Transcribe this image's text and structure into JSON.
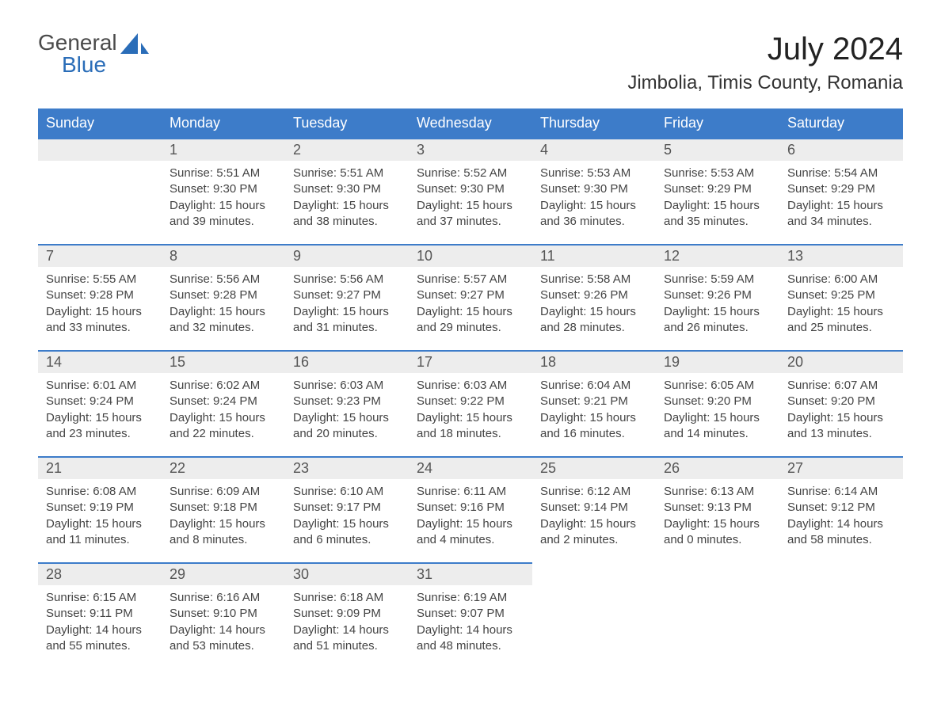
{
  "logo": {
    "line1": "General",
    "line2": "Blue"
  },
  "title": "July 2024",
  "location": "Jimbolia, Timis County, Romania",
  "colors": {
    "header_bg": "#3d7cc9",
    "header_text": "#ffffff",
    "daynum_bg": "#ededed",
    "daynum_border": "#3d7cc9",
    "body_text": "#444444",
    "title_text": "#222222",
    "logo_gray": "#4a4a4a",
    "logo_blue": "#2a6db8",
    "background": "#ffffff"
  },
  "day_headers": [
    "Sunday",
    "Monday",
    "Tuesday",
    "Wednesday",
    "Thursday",
    "Friday",
    "Saturday"
  ],
  "weeks": [
    [
      {
        "empty": true
      },
      {
        "num": "1",
        "sunrise": "Sunrise: 5:51 AM",
        "sunset": "Sunset: 9:30 PM",
        "dl1": "Daylight: 15 hours",
        "dl2": "and 39 minutes."
      },
      {
        "num": "2",
        "sunrise": "Sunrise: 5:51 AM",
        "sunset": "Sunset: 9:30 PM",
        "dl1": "Daylight: 15 hours",
        "dl2": "and 38 minutes."
      },
      {
        "num": "3",
        "sunrise": "Sunrise: 5:52 AM",
        "sunset": "Sunset: 9:30 PM",
        "dl1": "Daylight: 15 hours",
        "dl2": "and 37 minutes."
      },
      {
        "num": "4",
        "sunrise": "Sunrise: 5:53 AM",
        "sunset": "Sunset: 9:30 PM",
        "dl1": "Daylight: 15 hours",
        "dl2": "and 36 minutes."
      },
      {
        "num": "5",
        "sunrise": "Sunrise: 5:53 AM",
        "sunset": "Sunset: 9:29 PM",
        "dl1": "Daylight: 15 hours",
        "dl2": "and 35 minutes."
      },
      {
        "num": "6",
        "sunrise": "Sunrise: 5:54 AM",
        "sunset": "Sunset: 9:29 PM",
        "dl1": "Daylight: 15 hours",
        "dl2": "and 34 minutes."
      }
    ],
    [
      {
        "num": "7",
        "sunrise": "Sunrise: 5:55 AM",
        "sunset": "Sunset: 9:28 PM",
        "dl1": "Daylight: 15 hours",
        "dl2": "and 33 minutes."
      },
      {
        "num": "8",
        "sunrise": "Sunrise: 5:56 AM",
        "sunset": "Sunset: 9:28 PM",
        "dl1": "Daylight: 15 hours",
        "dl2": "and 32 minutes."
      },
      {
        "num": "9",
        "sunrise": "Sunrise: 5:56 AM",
        "sunset": "Sunset: 9:27 PM",
        "dl1": "Daylight: 15 hours",
        "dl2": "and 31 minutes."
      },
      {
        "num": "10",
        "sunrise": "Sunrise: 5:57 AM",
        "sunset": "Sunset: 9:27 PM",
        "dl1": "Daylight: 15 hours",
        "dl2": "and 29 minutes."
      },
      {
        "num": "11",
        "sunrise": "Sunrise: 5:58 AM",
        "sunset": "Sunset: 9:26 PM",
        "dl1": "Daylight: 15 hours",
        "dl2": "and 28 minutes."
      },
      {
        "num": "12",
        "sunrise": "Sunrise: 5:59 AM",
        "sunset": "Sunset: 9:26 PM",
        "dl1": "Daylight: 15 hours",
        "dl2": "and 26 minutes."
      },
      {
        "num": "13",
        "sunrise": "Sunrise: 6:00 AM",
        "sunset": "Sunset: 9:25 PM",
        "dl1": "Daylight: 15 hours",
        "dl2": "and 25 minutes."
      }
    ],
    [
      {
        "num": "14",
        "sunrise": "Sunrise: 6:01 AM",
        "sunset": "Sunset: 9:24 PM",
        "dl1": "Daylight: 15 hours",
        "dl2": "and 23 minutes."
      },
      {
        "num": "15",
        "sunrise": "Sunrise: 6:02 AM",
        "sunset": "Sunset: 9:24 PM",
        "dl1": "Daylight: 15 hours",
        "dl2": "and 22 minutes."
      },
      {
        "num": "16",
        "sunrise": "Sunrise: 6:03 AM",
        "sunset": "Sunset: 9:23 PM",
        "dl1": "Daylight: 15 hours",
        "dl2": "and 20 minutes."
      },
      {
        "num": "17",
        "sunrise": "Sunrise: 6:03 AM",
        "sunset": "Sunset: 9:22 PM",
        "dl1": "Daylight: 15 hours",
        "dl2": "and 18 minutes."
      },
      {
        "num": "18",
        "sunrise": "Sunrise: 6:04 AM",
        "sunset": "Sunset: 9:21 PM",
        "dl1": "Daylight: 15 hours",
        "dl2": "and 16 minutes."
      },
      {
        "num": "19",
        "sunrise": "Sunrise: 6:05 AM",
        "sunset": "Sunset: 9:20 PM",
        "dl1": "Daylight: 15 hours",
        "dl2": "and 14 minutes."
      },
      {
        "num": "20",
        "sunrise": "Sunrise: 6:07 AM",
        "sunset": "Sunset: 9:20 PM",
        "dl1": "Daylight: 15 hours",
        "dl2": "and 13 minutes."
      }
    ],
    [
      {
        "num": "21",
        "sunrise": "Sunrise: 6:08 AM",
        "sunset": "Sunset: 9:19 PM",
        "dl1": "Daylight: 15 hours",
        "dl2": "and 11 minutes."
      },
      {
        "num": "22",
        "sunrise": "Sunrise: 6:09 AM",
        "sunset": "Sunset: 9:18 PM",
        "dl1": "Daylight: 15 hours",
        "dl2": "and 8 minutes."
      },
      {
        "num": "23",
        "sunrise": "Sunrise: 6:10 AM",
        "sunset": "Sunset: 9:17 PM",
        "dl1": "Daylight: 15 hours",
        "dl2": "and 6 minutes."
      },
      {
        "num": "24",
        "sunrise": "Sunrise: 6:11 AM",
        "sunset": "Sunset: 9:16 PM",
        "dl1": "Daylight: 15 hours",
        "dl2": "and 4 minutes."
      },
      {
        "num": "25",
        "sunrise": "Sunrise: 6:12 AM",
        "sunset": "Sunset: 9:14 PM",
        "dl1": "Daylight: 15 hours",
        "dl2": "and 2 minutes."
      },
      {
        "num": "26",
        "sunrise": "Sunrise: 6:13 AM",
        "sunset": "Sunset: 9:13 PM",
        "dl1": "Daylight: 15 hours",
        "dl2": "and 0 minutes."
      },
      {
        "num": "27",
        "sunrise": "Sunrise: 6:14 AM",
        "sunset": "Sunset: 9:12 PM",
        "dl1": "Daylight: 14 hours",
        "dl2": "and 58 minutes."
      }
    ],
    [
      {
        "num": "28",
        "sunrise": "Sunrise: 6:15 AM",
        "sunset": "Sunset: 9:11 PM",
        "dl1": "Daylight: 14 hours",
        "dl2": "and 55 minutes."
      },
      {
        "num": "29",
        "sunrise": "Sunrise: 6:16 AM",
        "sunset": "Sunset: 9:10 PM",
        "dl1": "Daylight: 14 hours",
        "dl2": "and 53 minutes."
      },
      {
        "num": "30",
        "sunrise": "Sunrise: 6:18 AM",
        "sunset": "Sunset: 9:09 PM",
        "dl1": "Daylight: 14 hours",
        "dl2": "and 51 minutes."
      },
      {
        "num": "31",
        "sunrise": "Sunrise: 6:19 AM",
        "sunset": "Sunset: 9:07 PM",
        "dl1": "Daylight: 14 hours",
        "dl2": "and 48 minutes."
      },
      {
        "empty": true,
        "noborder": true
      },
      {
        "empty": true,
        "noborder": true
      },
      {
        "empty": true,
        "noborder": true
      }
    ]
  ]
}
